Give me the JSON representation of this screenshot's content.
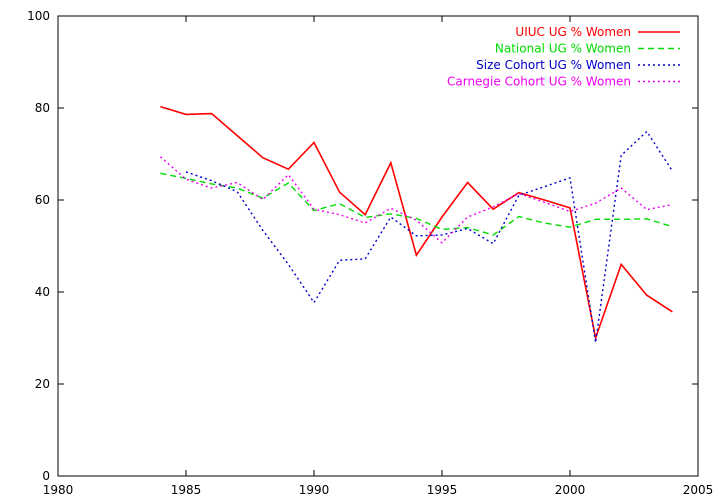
{
  "chart_data": {
    "type": "line",
    "xlim": [
      1980,
      2005
    ],
    "ylim": [
      0,
      100
    ],
    "x_ticks": [
      "1980",
      "1985",
      "1990",
      "1995",
      "2000",
      "2005"
    ],
    "y_ticks": [
      "0",
      "20",
      "40",
      "60",
      "80",
      "100"
    ],
    "grid": false,
    "legend_position": "top-right",
    "series": [
      {
        "name": "UIUC UG % Women",
        "color": "#ff0000",
        "dash": "solid",
        "x": [
          1984,
          1985,
          1986,
          1987,
          1988,
          1989,
          1990,
          1991,
          1992,
          1993,
          1994,
          1995,
          1996,
          1997,
          1998,
          1999,
          2000,
          2001,
          2002,
          2003,
          2004
        ],
        "y": [
          80.3,
          78.6,
          78.8,
          74.0,
          69.2,
          66.7,
          72.5,
          61.7,
          56.8,
          68.1,
          48.0,
          56.3,
          63.8,
          58.0,
          61.6,
          60.0,
          58.3,
          30.0,
          46.0,
          39.3,
          35.7
        ]
      },
      {
        "name": "National UG % Women",
        "color": "#00dd00",
        "dash": "dashed",
        "x": [
          1984,
          1985,
          1986,
          1987,
          1988,
          1989,
          1990,
          1991,
          1992,
          1993,
          1994,
          1995,
          1996,
          1997,
          1998,
          1999,
          2000,
          2001,
          2002,
          2003,
          2004
        ],
        "y": [
          65.8,
          64.7,
          63.5,
          62.6,
          60.4,
          63.7,
          57.7,
          59.2,
          56.2,
          57.0,
          56.0,
          53.6,
          54.0,
          52.4,
          56.4,
          55.0,
          54.1,
          55.8,
          55.8,
          55.9,
          54.2
        ]
      },
      {
        "name": "Size Cohort UG % Women",
        "color": "#0000cc",
        "dash": "dotted",
        "x": [
          1985,
          1986,
          1987,
          1988,
          1989,
          1990,
          1991,
          1992,
          1993,
          1994,
          1995,
          1996,
          1997,
          1998,
          1999,
          2000,
          2001,
          2002,
          2003,
          2004
        ],
        "y": [
          66.1,
          64.2,
          61.8,
          53.4,
          46.0,
          37.7,
          46.9,
          47.2,
          56.3,
          52.2,
          52.4,
          53.8,
          50.5,
          61.0,
          62.9,
          64.8,
          29.0,
          69.7,
          74.9,
          66.3
        ]
      },
      {
        "name": "Carnegie Cohort UG % Women",
        "color": "#ee00ee",
        "dash": "dotted",
        "x": [
          1984,
          1985,
          1986,
          1987,
          1988,
          1989,
          1990,
          1991,
          1992,
          1993,
          1994,
          1995,
          1996,
          1997,
          1998,
          1999,
          2000,
          2001,
          2002,
          2003,
          2004
        ],
        "y": [
          69.4,
          64.5,
          62.6,
          63.8,
          60.1,
          65.5,
          58.0,
          56.8,
          55.0,
          58.2,
          55.6,
          50.7,
          56.3,
          58.5,
          61.4,
          59.5,
          57.5,
          59.3,
          62.6,
          57.9,
          59.0
        ]
      }
    ]
  }
}
